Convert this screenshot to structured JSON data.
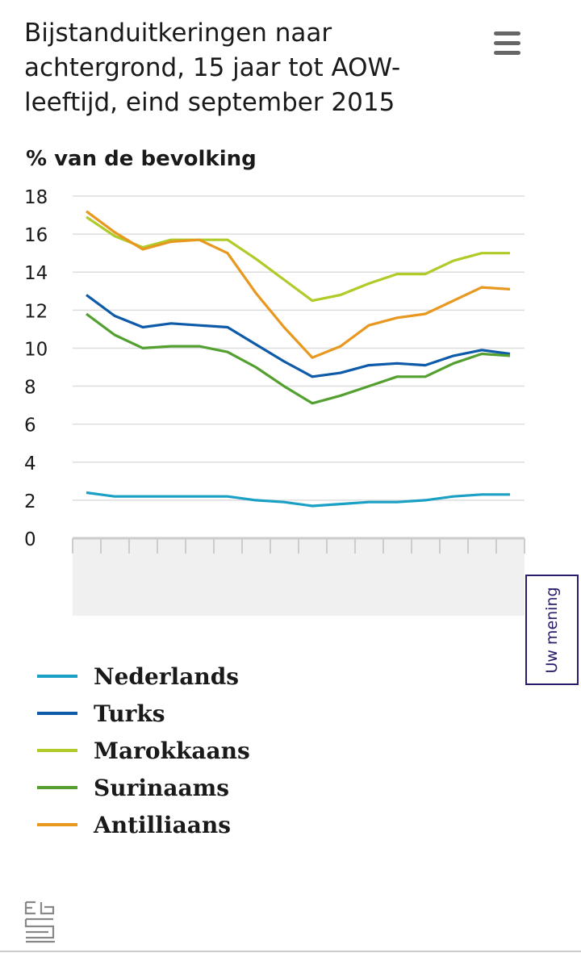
{
  "header": {
    "menu_icon": "hamburger-menu-icon"
  },
  "feedback": {
    "label": "Uw mening"
  },
  "footer": {
    "logo_icon": "cbs-logo-icon"
  },
  "chart_data": {
    "type": "line",
    "title": "Bijstanduitkeringen naar achtergrond, 15 jaar tot AOW-leeftijd, eind september 2015",
    "ylabel": "% van de bevolking",
    "xlabel": "",
    "ylim": [
      0,
      18
    ],
    "yticks": [
      "0",
      "2",
      "4",
      "6",
      "8",
      "10",
      "12",
      "14",
      "16",
      "18"
    ],
    "grid": true,
    "legend_position": "bottom",
    "x_points": 16,
    "series": [
      {
        "name": "Nederlands",
        "color": "#1aa0c4",
        "values": [
          2.4,
          2.2,
          2.2,
          2.2,
          2.2,
          2.2,
          2.0,
          1.9,
          1.7,
          1.8,
          1.9,
          1.9,
          2.0,
          2.2,
          2.3,
          2.3
        ]
      },
      {
        "name": "Turks",
        "color": "#0d5aa8",
        "values": [
          12.8,
          11.7,
          11.1,
          11.3,
          11.2,
          11.1,
          10.2,
          9.3,
          8.5,
          8.7,
          9.1,
          9.2,
          9.1,
          9.6,
          9.9,
          9.7
        ]
      },
      {
        "name": "Marokkaans",
        "color": "#afcb27",
        "values": [
          16.9,
          15.9,
          15.3,
          15.7,
          15.7,
          15.7,
          14.7,
          13.6,
          12.5,
          12.8,
          13.4,
          13.9,
          13.9,
          14.6,
          15.0,
          15.0
        ]
      },
      {
        "name": "Surinaams",
        "color": "#53a031",
        "values": [
          11.8,
          10.7,
          10.0,
          10.1,
          10.1,
          9.8,
          9.0,
          8.0,
          7.1,
          7.5,
          8.0,
          8.5,
          8.5,
          9.2,
          9.7,
          9.6
        ]
      },
      {
        "name": "Antilliaans",
        "color": "#e8981f",
        "values": [
          17.2,
          16.1,
          15.2,
          15.6,
          15.7,
          15.0,
          12.9,
          11.1,
          9.5,
          10.1,
          11.2,
          11.6,
          11.8,
          12.5,
          13.2,
          13.1
        ]
      }
    ]
  }
}
